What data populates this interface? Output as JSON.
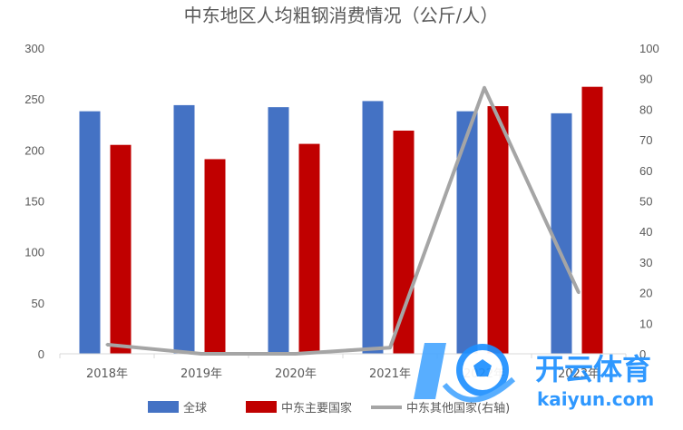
{
  "chart_data": {
    "type": "bar",
    "title": "中东地区人均粗钢消费情况（公斤/人）",
    "categories": [
      "2018年",
      "2019年",
      "2020年",
      "2021年",
      "2022年",
      "2023年"
    ],
    "series": [
      {
        "name": "全球",
        "type": "bar",
        "axis": "left",
        "color": "#4472C4",
        "values": [
          238,
          244,
          242,
          248,
          238,
          236
        ]
      },
      {
        "name": "中东主要国家",
        "type": "bar",
        "axis": "left",
        "color": "#C00000",
        "values": [
          205,
          191,
          206,
          219,
          243,
          262
        ]
      },
      {
        "name": "中东其他国家(右轴)",
        "type": "line",
        "axis": "right",
        "color": "#A5A5A5",
        "values": [
          3,
          0,
          0,
          2,
          87,
          20
        ]
      }
    ],
    "yleft": {
      "min": 0,
      "max": 300,
      "ticks": [
        0,
        50,
        100,
        150,
        200,
        250,
        300
      ]
    },
    "yright": {
      "min": 0,
      "max": 100,
      "ticks": [
        0,
        10,
        20,
        30,
        40,
        50,
        60,
        70,
        80,
        90,
        100
      ]
    },
    "legend": "bottom",
    "grid": false
  },
  "watermark": {
    "brand": "开云体育",
    "url": "kaiyun.com"
  }
}
